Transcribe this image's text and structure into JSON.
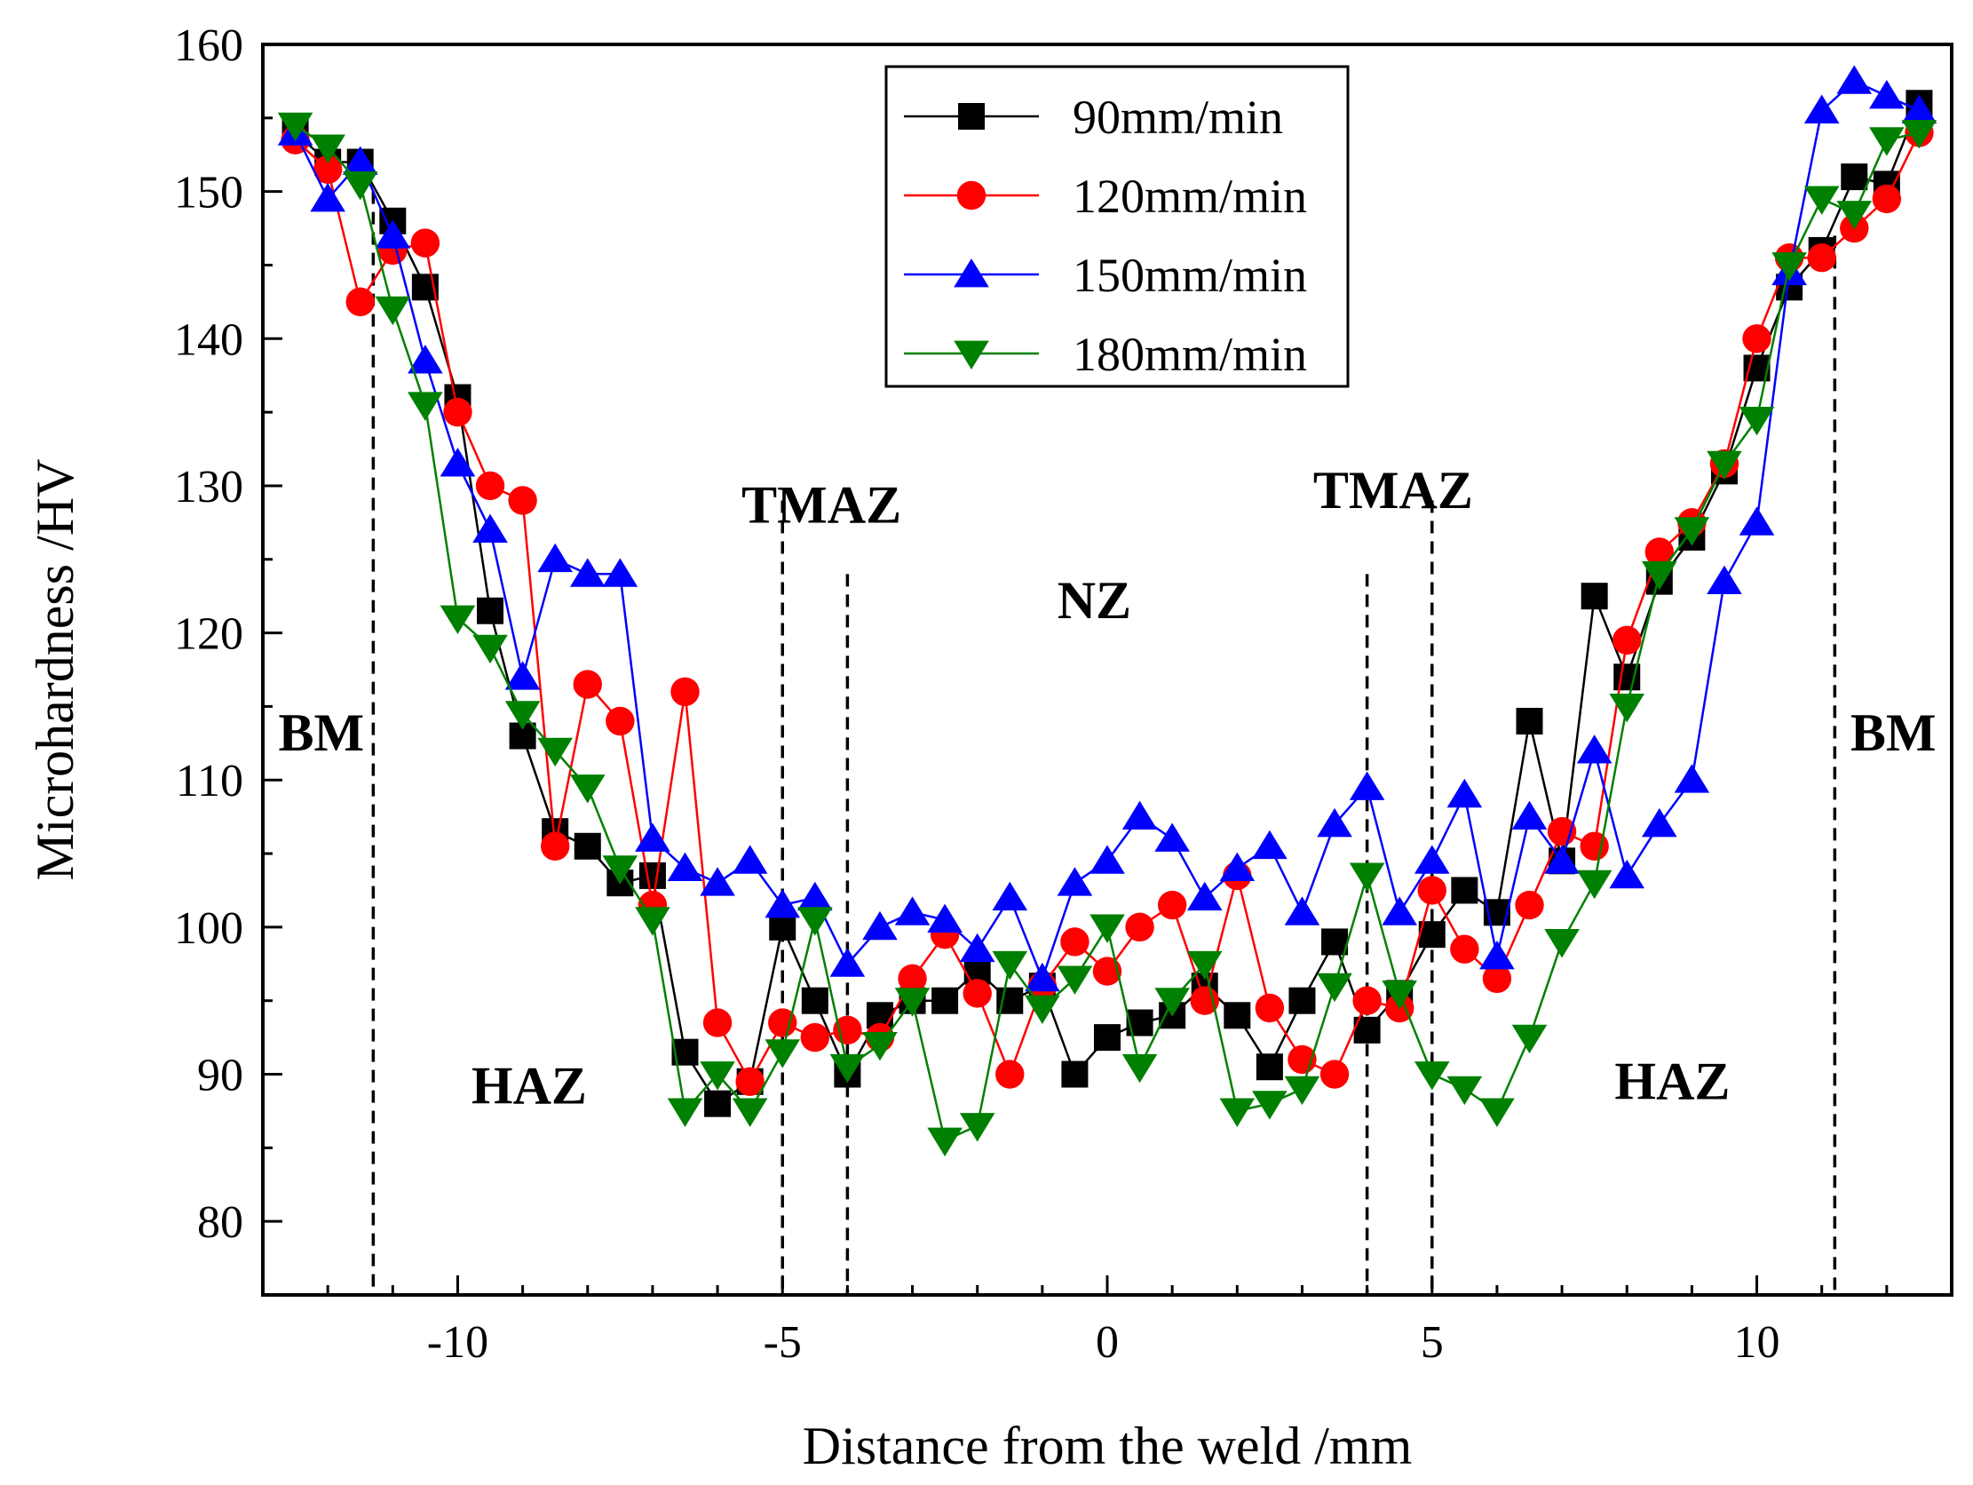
{
  "chart_data": {
    "type": "line",
    "xlabel": "Distance from the weld /mm",
    "ylabel": "Microhardness /HV",
    "xlim": [
      -13,
      13
    ],
    "ylim": [
      75,
      160
    ],
    "xticks": [
      -10,
      -5,
      0,
      5,
      10
    ],
    "yticks": [
      80,
      90,
      100,
      110,
      120,
      130,
      140,
      150,
      160
    ],
    "grid": false,
    "legend_position": "top-right",
    "zone_boundaries": [
      -11.3,
      -5,
      -4,
      4,
      5,
      11.2
    ],
    "zones": [
      {
        "label": "BM",
        "x": -12.1,
        "y": 112
      },
      {
        "label": "HAZ",
        "x": -8.9,
        "y": 88
      },
      {
        "label": "TMAZ",
        "x": -4.4,
        "y": 127.5
      },
      {
        "label": "NZ",
        "x": -0.2,
        "y": 121
      },
      {
        "label": "TMAZ",
        "x": 4.4,
        "y": 128.5
      },
      {
        "label": "HAZ",
        "x": 8.7,
        "y": 88.3
      },
      {
        "label": "BM",
        "x": 12.1,
        "y": 112
      }
    ],
    "x": [
      -12.5,
      -12,
      -11.5,
      -11,
      -10.5,
      -10,
      -9.5,
      -9,
      -8.5,
      -8,
      -7.5,
      -7,
      -6.5,
      -6,
      -5.5,
      -5,
      -4.5,
      -4,
      -3.5,
      -3,
      -2.5,
      -2,
      -1.5,
      -1,
      -0.5,
      0,
      0.5,
      1,
      1.5,
      2,
      2.5,
      3,
      3.5,
      4,
      4.5,
      5,
      5.5,
      6,
      6.5,
      7,
      7.5,
      8,
      8.5,
      9,
      9.5,
      10,
      10.5,
      11,
      11.5,
      12,
      12.5
    ],
    "series": [
      {
        "name": "90mm/min",
        "color": "#000000",
        "marker": "square",
        "values": [
          154,
          152,
          152,
          148,
          143.5,
          136,
          121.5,
          113,
          106.5,
          105.5,
          103,
          103.5,
          91.5,
          88,
          89.5,
          100,
          95,
          90,
          94,
          95,
          95,
          97,
          95,
          96,
          90,
          92.5,
          93.5,
          94,
          96,
          94,
          90.5,
          95,
          99,
          93,
          95.5,
          99.5,
          102.5,
          101,
          114,
          104.5,
          122.5,
          117,
          123.5,
          126.5,
          131,
          138,
          143.5,
          146,
          151,
          150.5,
          156
        ]
      },
      {
        "name": "120mm/min",
        "color": "#ff0000",
        "marker": "circle",
        "values": [
          153.5,
          151.5,
          142.5,
          146,
          146.5,
          135,
          130,
          129,
          105.5,
          116.5,
          114,
          101.5,
          116,
          93.5,
          89.5,
          93.5,
          92.5,
          93,
          92.5,
          96.5,
          99.5,
          95.5,
          90,
          96,
          99,
          97,
          100,
          101.5,
          95,
          103.5,
          94.5,
          91,
          90,
          95,
          94.5,
          102.5,
          98.5,
          96.5,
          101.5,
          106.5,
          105.5,
          119.5,
          125.5,
          127.5,
          131.5,
          140,
          145.5,
          145.5,
          147.5,
          149.5,
          154
        ]
      },
      {
        "name": "150mm/min",
        "color": "#0000ff",
        "marker": "triangle-up",
        "values": [
          154,
          149.5,
          152,
          147,
          138.5,
          131.5,
          127,
          117,
          125,
          124,
          124,
          106,
          104,
          103,
          104.5,
          101.5,
          102,
          97.5,
          100,
          101,
          100.5,
          98.5,
          102,
          96.5,
          103,
          104.5,
          107.5,
          106,
          102,
          104,
          105.5,
          101,
          107,
          109.5,
          101,
          104.5,
          109,
          98,
          107.5,
          104.5,
          112,
          103.5,
          107,
          110,
          123.5,
          127.5,
          144.5,
          155.5,
          157.5,
          156.5,
          155.5
        ]
      },
      {
        "name": "180mm/min",
        "color": "#008000",
        "marker": "triangle-down",
        "values": [
          154.5,
          153,
          150.5,
          142,
          135.5,
          121,
          119,
          114.5,
          112,
          109.5,
          104,
          100.5,
          87.5,
          90,
          87.5,
          91.5,
          100.5,
          90.5,
          92,
          95,
          85.5,
          86.5,
          97.5,
          94.5,
          96.5,
          100,
          90.5,
          95,
          97.5,
          87.5,
          88,
          89,
          96,
          103.5,
          95.5,
          90,
          89,
          87.5,
          92.5,
          99,
          103,
          115,
          124,
          127,
          131.5,
          134.5,
          145,
          149.5,
          148.5,
          153.5,
          154
        ]
      }
    ]
  }
}
